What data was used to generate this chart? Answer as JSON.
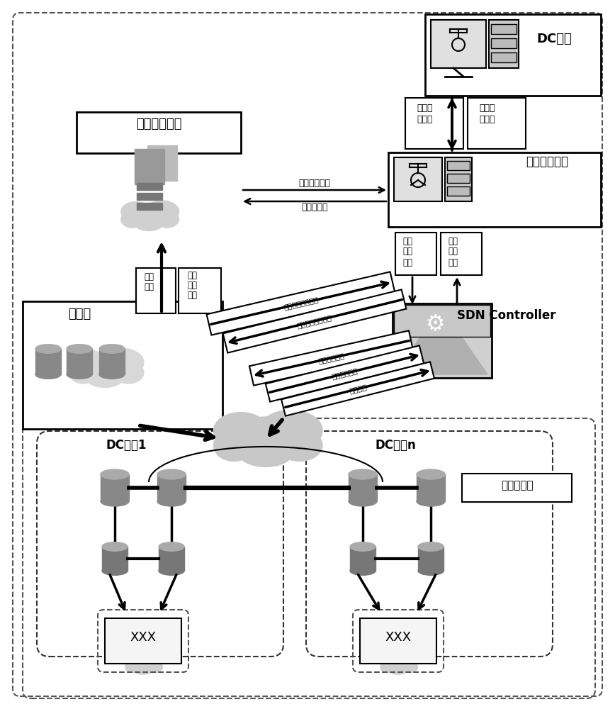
{
  "bg_color": "#ffffff",
  "title_dc_wanguan": "DC网管",
  "title_flow_analysis": "流量分析系统",
  "title_policy_control": "策略管控系统",
  "title_sdn": "SDN Controller",
  "title_backbone": "骨干网",
  "label_dc1": "DC出口1",
  "label_dcn": "DC出口n",
  "label_exit_router": "出口路由器",
  "label_rent_get": "租户信息获取",
  "label_adjust_stat": "调节流统计",
  "label_rent_info_l1": "租户信",
  "label_rent_info_l2": "息获取",
  "label_alarm_info_l1": "告警信",
  "label_alarm_info_l2": "息上报",
  "label_path_constraint_l1": "路径",
  "label_path_constraint_l2": "约束",
  "label_path_constraint_l3": "下发",
  "label_path_result_l1": "路径",
  "label_path_result_l2": "结果",
  "label_path_result_l3": "上报",
  "label_flow_collect": "流量采集",
  "label_flow_stat_get_l1": "流量",
  "label_flow_stat_get_l2": "统计",
  "label_flow_stat_get_l3": "获取",
  "label_flow_stat_config": "流量统计配置下发",
  "label_route_phys_bw": "链路物理带宽获取",
  "label_path_strategy": "路径策略下发",
  "label_stat_info_get": "统计信息获取",
  "label_route_get": "路由获取"
}
